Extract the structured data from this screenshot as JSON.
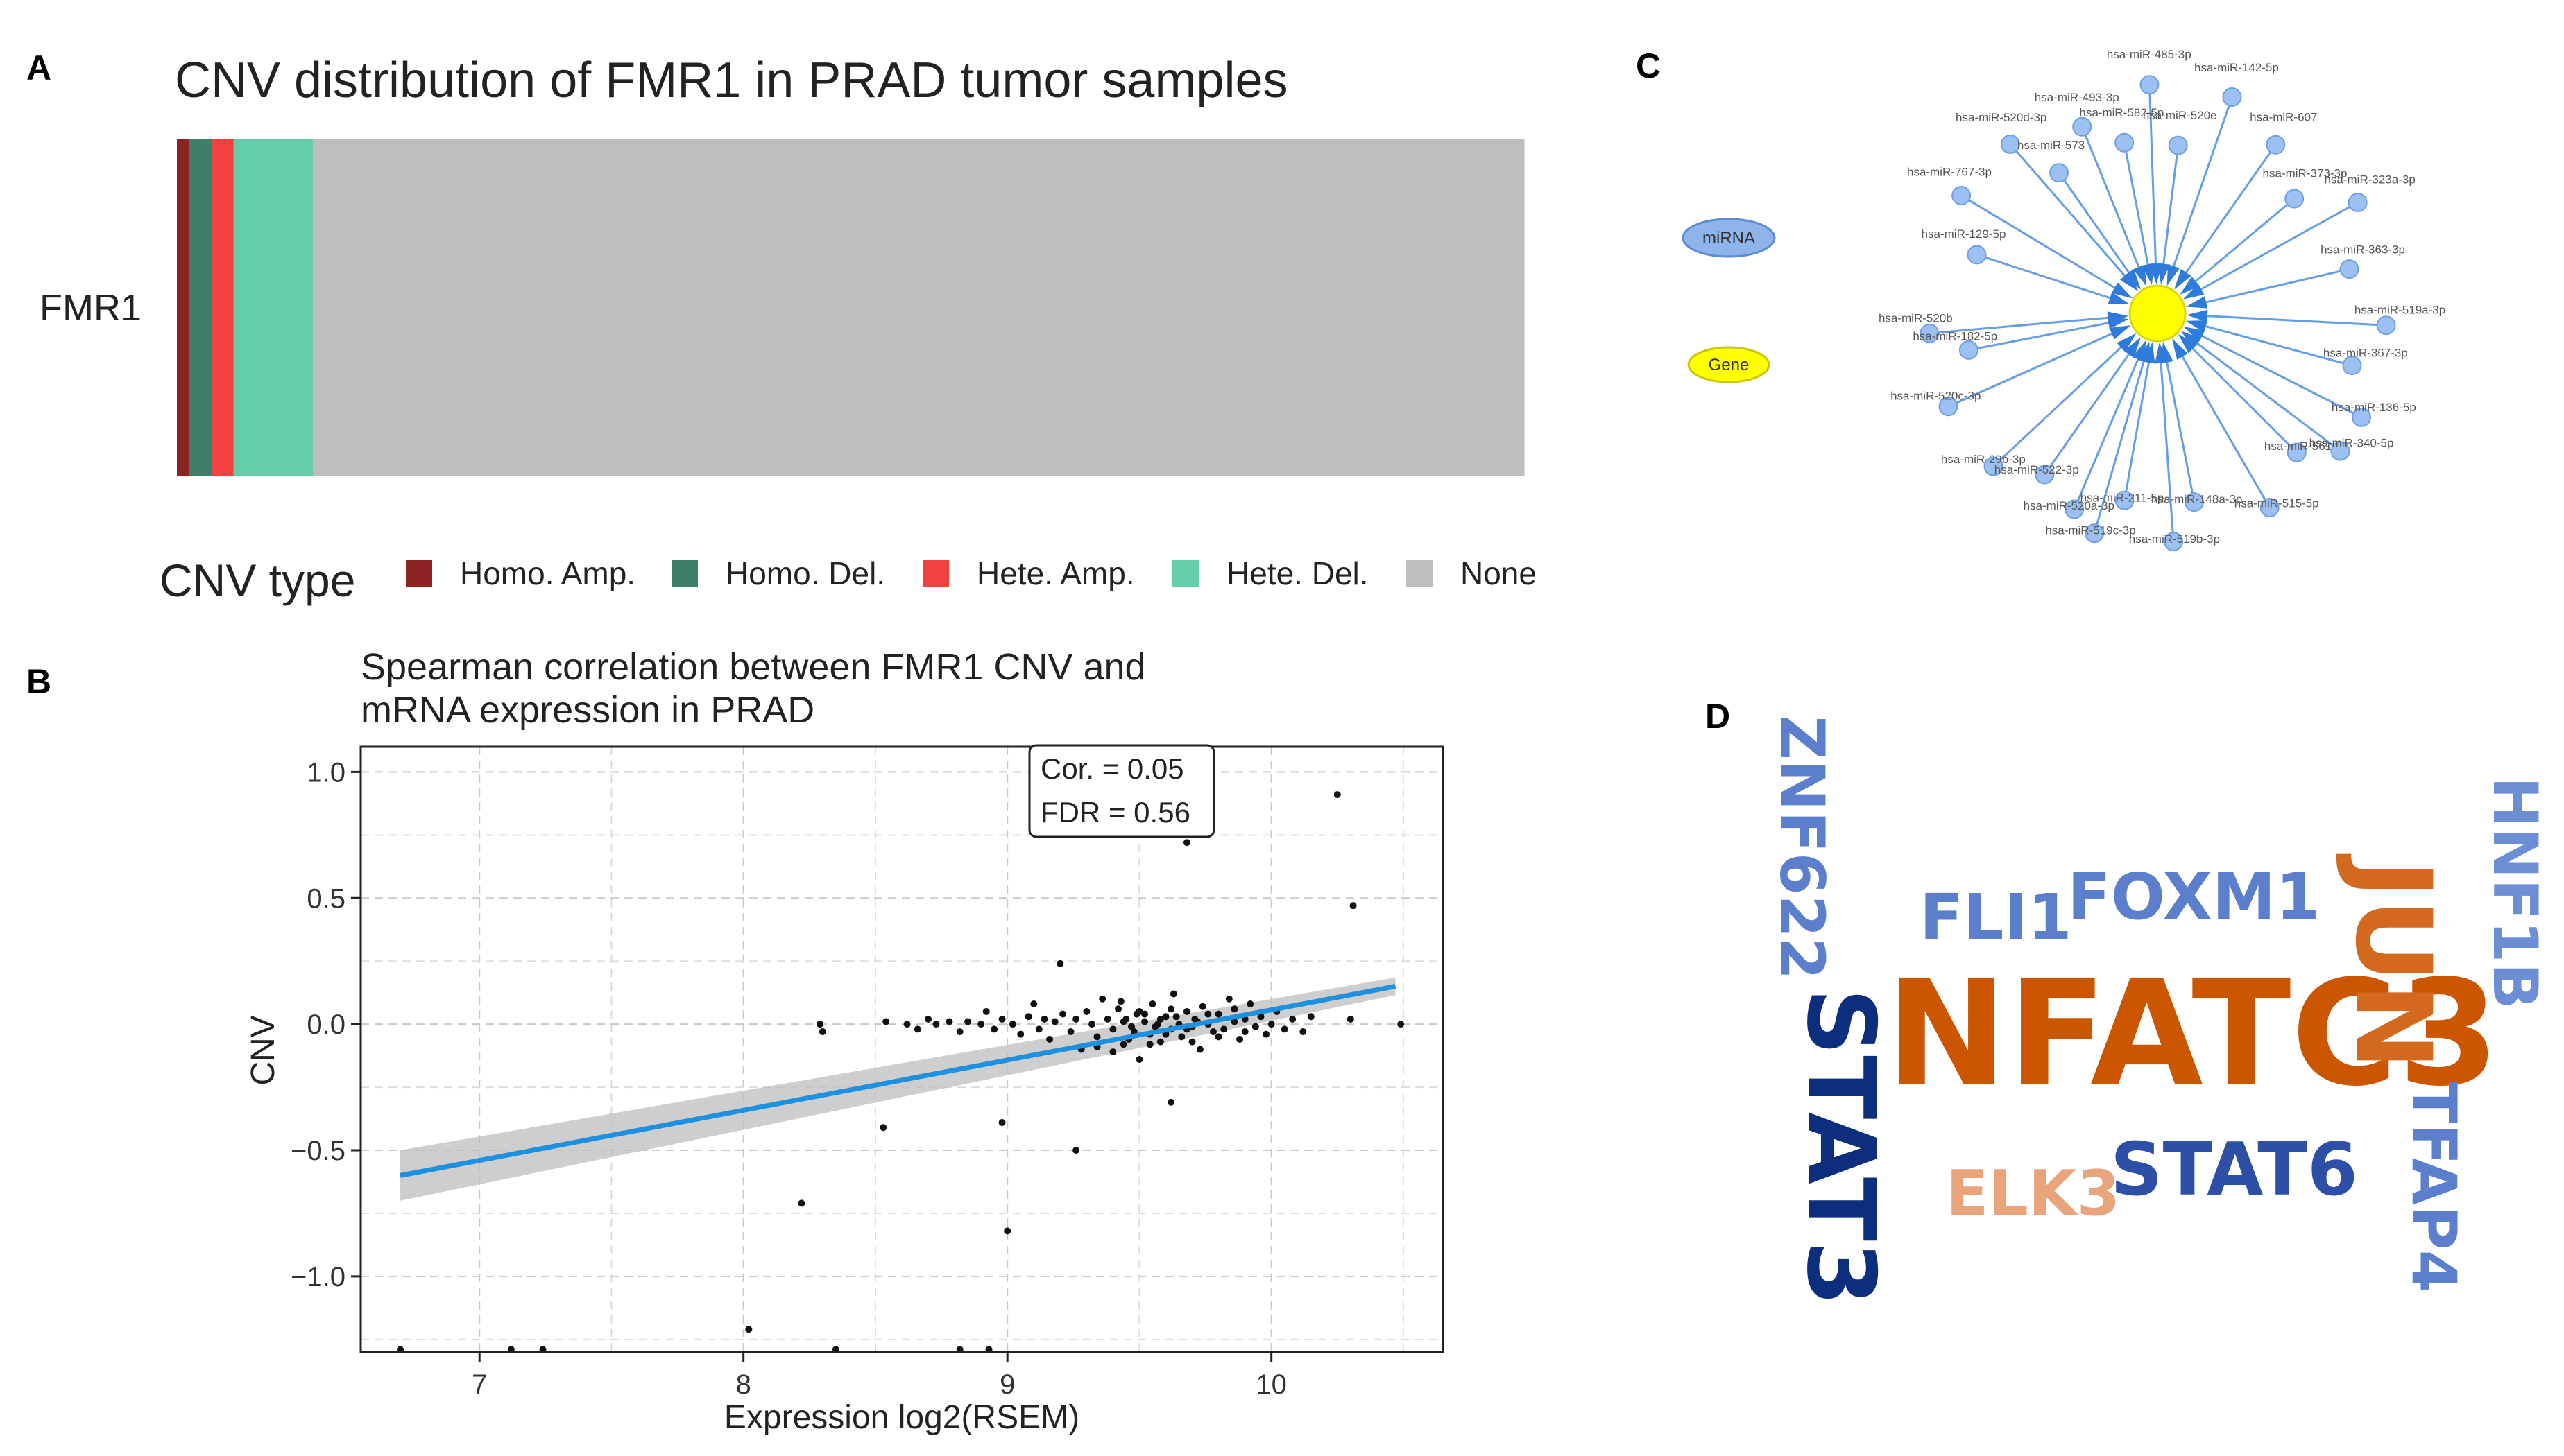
{
  "panels": {
    "a": {
      "label": "A"
    },
    "b": {
      "label": "B"
    },
    "c": {
      "label": "C"
    },
    "d": {
      "label": "D"
    }
  },
  "chart_data": [
    {
      "type": "bar",
      "orientation": "horizontal-stacked-proportion",
      "title": "CNV distribution of FMR1 in PRAD tumor samples",
      "categories": [
        "FMR1"
      ],
      "series": [
        {
          "name": "Homo. Amp.",
          "values": [
            0.009
          ],
          "color": "#8B2323"
        },
        {
          "name": "Homo. Del.",
          "values": [
            0.017
          ],
          "color": "#3D7F6B"
        },
        {
          "name": "Hete. Amp.",
          "values": [
            0.016
          ],
          "color": "#F24141"
        },
        {
          "name": "Hete. Del.",
          "values": [
            0.059
          ],
          "color": "#66CDAA"
        },
        {
          "name": "None",
          "values": [
            0.899
          ],
          "color": "#BEBEBE"
        }
      ],
      "legend_title": "CNV type",
      "legend_position": "bottom"
    },
    {
      "type": "scatter",
      "title_lines": [
        "Spearman correlation between FMR1 CNV and",
        "mRNA expression in PRAD"
      ],
      "xlabel": "Expression log2(RSEM)",
      "ylabel": "CNV",
      "xlim": [
        6.55,
        10.65
      ],
      "ylim": [
        -1.3,
        1.1
      ],
      "xticks": [
        7,
        8,
        9,
        10
      ],
      "xtick_labels": [
        "7",
        "8",
        "9",
        "10"
      ],
      "yticks": [
        1.0,
        0.5,
        0.0,
        -0.5,
        -1.0
      ],
      "ytick_labels": [
        "1.0",
        "0.5",
        "0.0",
        "−0.5",
        "−1.0"
      ],
      "annotation": {
        "cor": "Cor. = 0.05",
        "fdr": "FDR = 0.56"
      },
      "regression": {
        "x": [
          6.7,
          10.47
        ],
        "y": [
          -0.6,
          0.15
        ],
        "band_left": 0.1,
        "band_right": 0.035
      },
      "points": [
        [
          6.7,
          -1.29
        ],
        [
          7.12,
          -1.29
        ],
        [
          7.24,
          -1.29
        ],
        [
          8.02,
          -1.21
        ],
        [
          8.35,
          -1.29
        ],
        [
          8.82,
          -1.29
        ],
        [
          8.93,
          -1.29
        ],
        [
          9.0,
          -0.82
        ],
        [
          8.22,
          -0.71
        ],
        [
          9.26,
          -0.5
        ],
        [
          8.98,
          -0.39
        ],
        [
          8.53,
          -0.41
        ],
        [
          9.62,
          -0.31
        ],
        [
          10.25,
          0.91
        ],
        [
          10.31,
          0.47
        ],
        [
          9.68,
          0.72
        ],
        [
          9.2,
          0.24
        ],
        [
          10.49,
          0.0
        ],
        [
          10.3,
          0.02
        ],
        [
          10.15,
          0.03
        ],
        [
          8.29,
          0.0
        ],
        [
          8.3,
          -0.03
        ],
        [
          8.54,
          0.01
        ],
        [
          8.62,
          0.0
        ],
        [
          8.66,
          -0.02
        ],
        [
          8.7,
          0.02
        ],
        [
          8.73,
          0.0
        ],
        [
          8.78,
          0.01
        ],
        [
          8.82,
          -0.03
        ],
        [
          8.85,
          0.01
        ],
        [
          8.9,
          0.0
        ],
        [
          8.92,
          0.05
        ],
        [
          8.95,
          -0.02
        ],
        [
          8.98,
          0.02
        ],
        [
          9.02,
          0.0
        ],
        [
          9.05,
          -0.04
        ],
        [
          9.08,
          0.03
        ],
        [
          9.1,
          0.08
        ],
        [
          9.12,
          -0.02
        ],
        [
          9.14,
          0.02
        ],
        [
          9.16,
          -0.06
        ],
        [
          9.18,
          0.01
        ],
        [
          9.21,
          0.04
        ],
        [
          9.24,
          -0.03
        ],
        [
          9.26,
          0.02
        ],
        [
          9.28,
          -0.1
        ],
        [
          9.3,
          0.05
        ],
        [
          9.32,
          0.0
        ],
        [
          9.34,
          -0.05
        ],
        [
          9.36,
          0.1
        ],
        [
          9.38,
          0.02
        ],
        [
          9.4,
          -0.02
        ],
        [
          9.42,
          0.06
        ],
        [
          9.44,
          -0.08
        ],
        [
          9.45,
          0.02
        ],
        [
          9.47,
          -0.01
        ],
        [
          9.49,
          0.04
        ],
        [
          9.5,
          -0.14
        ],
        [
          9.52,
          0.01
        ],
        [
          9.54,
          -0.04
        ],
        [
          9.55,
          0.08
        ],
        [
          9.57,
          0.0
        ],
        [
          9.58,
          -0.07
        ],
        [
          9.6,
          0.03
        ],
        [
          9.62,
          -0.02
        ],
        [
          9.63,
          0.12
        ],
        [
          9.65,
          0.0
        ],
        [
          9.66,
          -0.05
        ],
        [
          9.68,
          0.05
        ],
        [
          9.7,
          -0.01
        ],
        [
          9.71,
          0.02
        ],
        [
          9.73,
          -0.1
        ],
        [
          9.74,
          0.07
        ],
        [
          9.76,
          0.0
        ],
        [
          9.78,
          -0.03
        ],
        [
          9.8,
          0.04
        ],
        [
          9.82,
          -0.02
        ],
        [
          9.84,
          0.1
        ],
        [
          9.86,
          0.01
        ],
        [
          9.88,
          -0.06
        ],
        [
          9.9,
          0.02
        ],
        [
          9.92,
          0.08
        ],
        [
          9.94,
          -0.01
        ],
        [
          9.96,
          0.03
        ],
        [
          9.98,
          -0.04
        ],
        [
          10.0,
          0.0
        ],
        [
          10.02,
          0.05
        ],
        [
          10.05,
          -0.02
        ],
        [
          10.08,
          0.02
        ],
        [
          10.12,
          -0.03
        ],
        [
          9.44,
          0.01
        ],
        [
          9.48,
          -0.03
        ],
        [
          9.52,
          0.04
        ],
        [
          9.56,
          -0.01
        ],
        [
          9.6,
          -0.04
        ],
        [
          9.64,
          0.03
        ],
        [
          9.68,
          -0.02
        ],
        [
          9.72,
          0.01
        ],
        [
          9.5,
          0.05
        ],
        [
          9.58,
          0.02
        ],
        [
          9.62,
          0.06
        ],
        [
          9.46,
          -0.06
        ],
        [
          9.54,
          -0.08
        ],
        [
          9.7,
          -0.07
        ],
        [
          9.34,
          -0.09
        ],
        [
          9.4,
          -0.11
        ],
        [
          9.43,
          0.09
        ],
        [
          9.76,
          0.04
        ],
        [
          9.8,
          -0.05
        ],
        [
          9.86,
          0.06
        ],
        [
          9.9,
          -0.03
        ]
      ]
    }
  ],
  "network": {
    "legend": {
      "mirna": "miRNA",
      "gene": "Gene"
    },
    "nodes": [
      {
        "label": "hsa-miR-485-3p",
        "angle": -92,
        "r": 1.0
      },
      {
        "label": "hsa-miR-142-5p",
        "angle": -71,
        "r": 1.0
      },
      {
        "label": "hsa-miR-493-3p",
        "angle": -112,
        "r": 0.88
      },
      {
        "label": "hsa-miR-582-5p",
        "angle": -101,
        "r": 0.76
      },
      {
        "label": "hsa-miR-520e",
        "angle": -83,
        "r": 0.74
      },
      {
        "label": "hsa-miR-607",
        "angle": -55,
        "r": 0.9
      },
      {
        "label": "hsa-miR-520d-3p",
        "angle": -131,
        "r": 0.98
      },
      {
        "label": "hsa-miR-573",
        "angle": -125,
        "r": 0.75
      },
      {
        "label": "hsa-miR-373-3p",
        "angle": -40,
        "r": 0.78
      },
      {
        "label": "hsa-miR-323a-3p",
        "angle": -29,
        "r": 1.0
      },
      {
        "label": "hsa-miR-767-3p",
        "angle": -149,
        "r": 1.0
      },
      {
        "label": "hsa-miR-129-5p",
        "angle": -162,
        "r": 0.83
      },
      {
        "label": "hsa-miR-363-3p",
        "angle": -13,
        "r": 0.86
      },
      {
        "label": "hsa-miR-520b",
        "angle": 175,
        "r": 1.0
      },
      {
        "label": "hsa-miR-519a-3p",
        "angle": 3,
        "r": 1.0
      },
      {
        "label": "hsa-miR-182-5p",
        "angle": 169,
        "r": 0.84
      },
      {
        "label": "hsa-miR-367-3p",
        "angle": 15,
        "r": 0.88
      },
      {
        "label": "hsa-miR-520c-3p",
        "angle": 156,
        "r": 1.0
      },
      {
        "label": "hsa-miR-136-5p",
        "angle": 27,
        "r": 1.0
      },
      {
        "label": "hsa-miR-29b-3p",
        "angle": 137,
        "r": 0.98
      },
      {
        "label": "hsa-miR-522-3p",
        "angle": 125,
        "r": 0.86
      },
      {
        "label": "hsa-miR-561-3p",
        "angle": 45,
        "r": 0.86
      },
      {
        "label": "hsa-miR-340-5p",
        "angle": 37,
        "r": 1.0
      },
      {
        "label": "hsa-miR-520a-3p",
        "angle": 113,
        "r": 0.93
      },
      {
        "label": "hsa-miR-211-5p",
        "angle": 100,
        "r": 0.83
      },
      {
        "label": "hsa-miR-148a-3p",
        "angle": 79,
        "r": 0.84
      },
      {
        "label": "hsa-miR-515-5p",
        "angle": 60,
        "r": 0.98
      },
      {
        "label": "hsa-miR-519c-3p",
        "angle": 106,
        "r": 1.0
      },
      {
        "label": "hsa-miR-519b-3p",
        "angle": 86,
        "r": 1.0
      }
    ]
  },
  "wordcloud": {
    "words": [
      {
        "text": "NFATC3",
        "color": "#CC5500"
      },
      {
        "text": "JUN",
        "color": "#D2691E"
      },
      {
        "text": "STAT3",
        "color": "#0D2E7C"
      },
      {
        "text": "STAT6",
        "color": "#2D4FA5"
      },
      {
        "text": "FOXM1",
        "color": "#5B7FCC"
      },
      {
        "text": "FLI1",
        "color": "#5B7FCC"
      },
      {
        "text": "ZNF622",
        "color": "#5B7FCC"
      },
      {
        "text": "HNF1B",
        "color": "#6B8ED4"
      },
      {
        "text": "TFAP4",
        "color": "#5B7FCC"
      },
      {
        "text": "ELK3",
        "color": "#E8A47A"
      }
    ]
  }
}
